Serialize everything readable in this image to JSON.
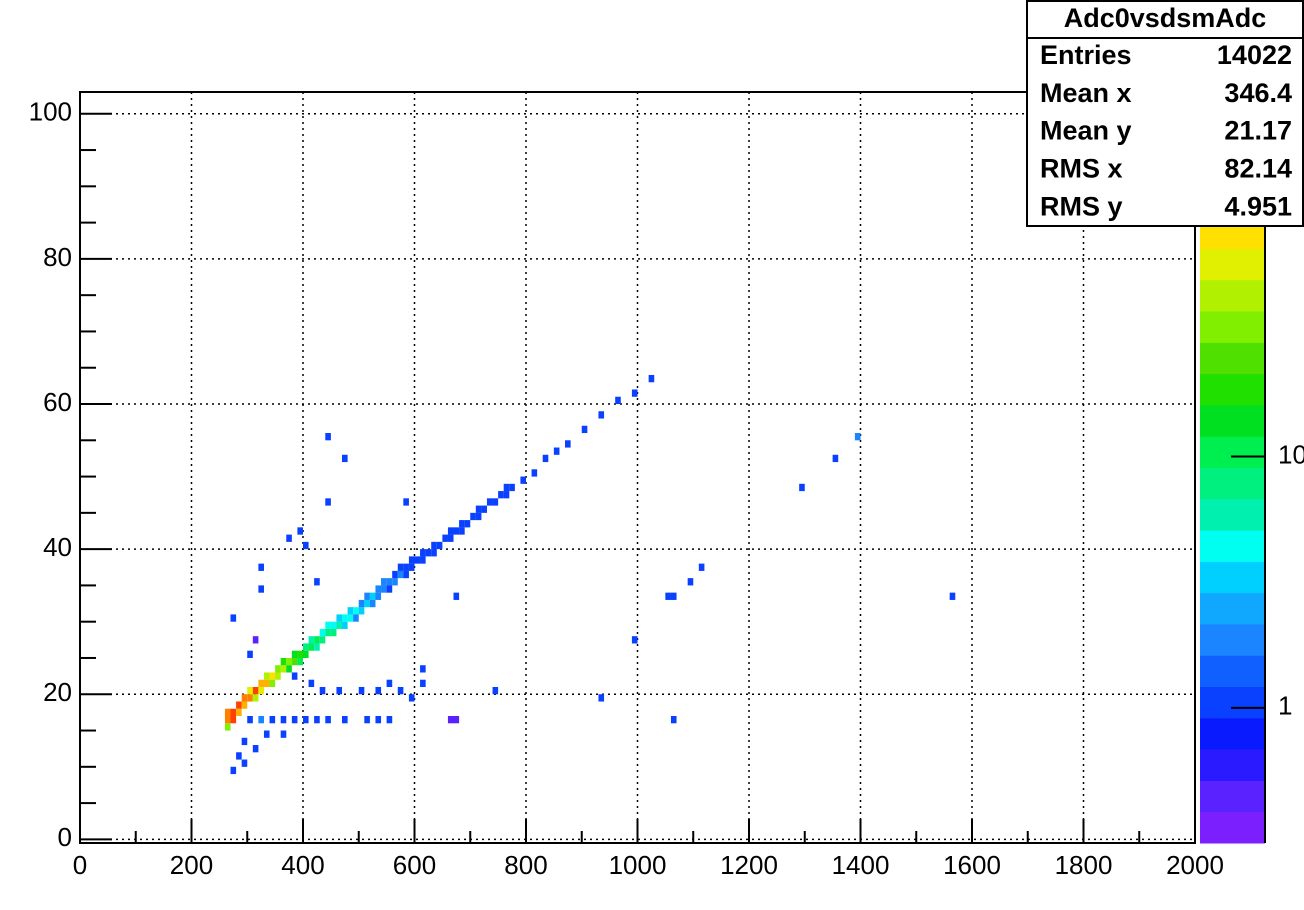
{
  "chart_data": {
    "type": "heatmap",
    "xlim": [
      0,
      2000
    ],
    "ylim": [
      -0.5,
      103
    ],
    "xticks": [
      0,
      200,
      400,
      600,
      800,
      1000,
      1200,
      1400,
      1600,
      1800,
      2000
    ],
    "yticks": [
      0,
      20,
      40,
      60,
      80,
      100
    ],
    "xminorticks": [
      100,
      300,
      500,
      700,
      900,
      1100,
      1300,
      1500,
      1700,
      1900
    ],
    "yminorticks": [
      5,
      10,
      15,
      25,
      30,
      35,
      45,
      50,
      55,
      65,
      70,
      75,
      85,
      90,
      95
    ],
    "grid": true,
    "zscale": "log",
    "zlim": [
      0.29,
      282
    ],
    "zticks": [
      1,
      10
    ],
    "palette": [
      "#7b1fff",
      "#5a22ff",
      "#2a1aff",
      "#0a1aff",
      "#0a40ff",
      "#1060ff",
      "#1a85ff",
      "#10a8ff",
      "#00d0ff",
      "#00fff0",
      "#00f0b0",
      "#00f080",
      "#00ef50",
      "#00e020",
      "#20e000",
      "#50e000",
      "#80f000",
      "#b0f000",
      "#e0f000",
      "#ffe000",
      "#ffb000",
      "#ff8000",
      "#ff4000",
      "#ff0000"
    ],
    "x": [
      265,
      265,
      265,
      275,
      275,
      285,
      285,
      295,
      295,
      305,
      305,
      315,
      315,
      325,
      325,
      335,
      335,
      345,
      345,
      355,
      355,
      365,
      365,
      375,
      375,
      385,
      385,
      395,
      395,
      405,
      405,
      415,
      415,
      425,
      425,
      435,
      435,
      445,
      445,
      455,
      455,
      465,
      465,
      475,
      475,
      485,
      485,
      495,
      495,
      505,
      505,
      515,
      515,
      525,
      525,
      535,
      535,
      545,
      545,
      555,
      555,
      565,
      565,
      575,
      575,
      585,
      585,
      595,
      595,
      605,
      615,
      615,
      625,
      635,
      635,
      645,
      655,
      665,
      665,
      675,
      685,
      685,
      695,
      705,
      715,
      715,
      725,
      735,
      745,
      755,
      765,
      765,
      775,
      795,
      815,
      835,
      855,
      875,
      905,
      935,
      965,
      995,
      1025,
      305,
      325,
      345,
      365,
      385,
      405,
      425,
      445,
      475,
      515,
      535,
      555,
      665,
      675,
      1065,
      445,
      475,
      445,
      585,
      395,
      375,
      405,
      325,
      325,
      425,
      675,
      1055,
      1065,
      1095,
      1115,
      1565,
      995,
      1395,
      1355,
      1295,
      275,
      315,
      305,
      295,
      285,
      295,
      275,
      315,
      335,
      365,
      935,
      745,
      615,
      615,
      575,
      595,
      535,
      505,
      465,
      435,
      415,
      385,
      555
    ],
    "y": [
      17.5,
      16.5,
      15.5,
      17.5,
      16.5,
      18.5,
      17.5,
      19.5,
      18.5,
      19.5,
      20.5,
      20.5,
      19.5,
      21.5,
      20.5,
      21.5,
      22.5,
      22.5,
      21.5,
      22.5,
      23.5,
      23.5,
      24.5,
      24.5,
      23.5,
      24.5,
      25.5,
      25.5,
      24.5,
      25.5,
      26.5,
      26.5,
      27.5,
      27.5,
      26.5,
      27.5,
      28.5,
      28.5,
      29.5,
      28.5,
      29.5,
      29.5,
      30.5,
      30.5,
      29.5,
      30.5,
      31.5,
      31.5,
      30.5,
      31.5,
      32.5,
      32.5,
      33.5,
      33.5,
      32.5,
      33.5,
      34.5,
      34.5,
      35.5,
      35.5,
      34.5,
      35.5,
      36.5,
      36.5,
      37.5,
      36.5,
      37.5,
      37.5,
      38.5,
      38.5,
      38.5,
      39.5,
      39.5,
      39.5,
      40.5,
      40.5,
      41.5,
      41.5,
      42.5,
      42.5,
      42.5,
      43.5,
      43.5,
      44.5,
      44.5,
      45.5,
      45.5,
      46.5,
      46.5,
      47.5,
      47.5,
      48.5,
      48.5,
      49.5,
      50.5,
      52.5,
      53.5,
      54.5,
      56.5,
      58.5,
      60.5,
      61.5,
      63.5,
      16.5,
      16.5,
      16.5,
      16.5,
      16.5,
      16.5,
      16.5,
      16.5,
      16.5,
      16.5,
      16.5,
      16.5,
      16.5,
      16.5,
      16.5,
      55.5,
      52.5,
      46.5,
      46.5,
      42.5,
      41.5,
      40.5,
      37.5,
      34.5,
      35.5,
      33.5,
      33.5,
      33.5,
      35.5,
      37.5,
      33.5,
      27.5,
      55.5,
      52.5,
      48.5,
      30.5,
      27.5,
      25.5,
      13.5,
      11.5,
      10.5,
      9.5,
      12.5,
      14.5,
      14.5,
      19.5,
      20.5,
      21.5,
      23.5,
      20.5,
      19.5,
      20.5,
      20.5,
      20.5,
      20.5,
      21.5,
      22.5,
      21.5
    ],
    "values": [
      150,
      120,
      30,
      200,
      160,
      180,
      90,
      120,
      100,
      150,
      60,
      170,
      50,
      110,
      60,
      90,
      40,
      70,
      30,
      50,
      30,
      40,
      20,
      30,
      15,
      25,
      15,
      20,
      10,
      15,
      9,
      12,
      6,
      10,
      6,
      9,
      5,
      8,
      4,
      7,
      5,
      6,
      3,
      5,
      3,
      4,
      3,
      4,
      2,
      3,
      2,
      3,
      2,
      3,
      2,
      2,
      2,
      2,
      2,
      2,
      1,
      2,
      1,
      2,
      1,
      1,
      1,
      1,
      1,
      1,
      1,
      1,
      1,
      1,
      1,
      1,
      1,
      1,
      1,
      1,
      1,
      1,
      1,
      1,
      1,
      1,
      1,
      1,
      1,
      1,
      1,
      1,
      1,
      1,
      1,
      1,
      1,
      1,
      1,
      1,
      1,
      1,
      1,
      1,
      2,
      1,
      1,
      1,
      1,
      1,
      1,
      1,
      1,
      1,
      1,
      0.5,
      0.5,
      1,
      1,
      1,
      1,
      1,
      1,
      1,
      1,
      1,
      1,
      1,
      1,
      1,
      1,
      1,
      1,
      1,
      1,
      2,
      1,
      1,
      1,
      0.5,
      1,
      1,
      1,
      1,
      1,
      1,
      1,
      1,
      1,
      1,
      1,
      1,
      1,
      1,
      1,
      1,
      1,
      1,
      1,
      1,
      1
    ],
    "stats_box": {
      "title": "Adc0vsdsmAdc",
      "rows": [
        {
          "label": "Entries",
          "value": 14022
        },
        {
          "label": "Mean x",
          "value": 346.4
        },
        {
          "label": "Mean y",
          "value": 21.17
        },
        {
          "label": "RMS x",
          "value": 82.14
        },
        {
          "label": "RMS y",
          "value": 4.951
        }
      ]
    }
  }
}
